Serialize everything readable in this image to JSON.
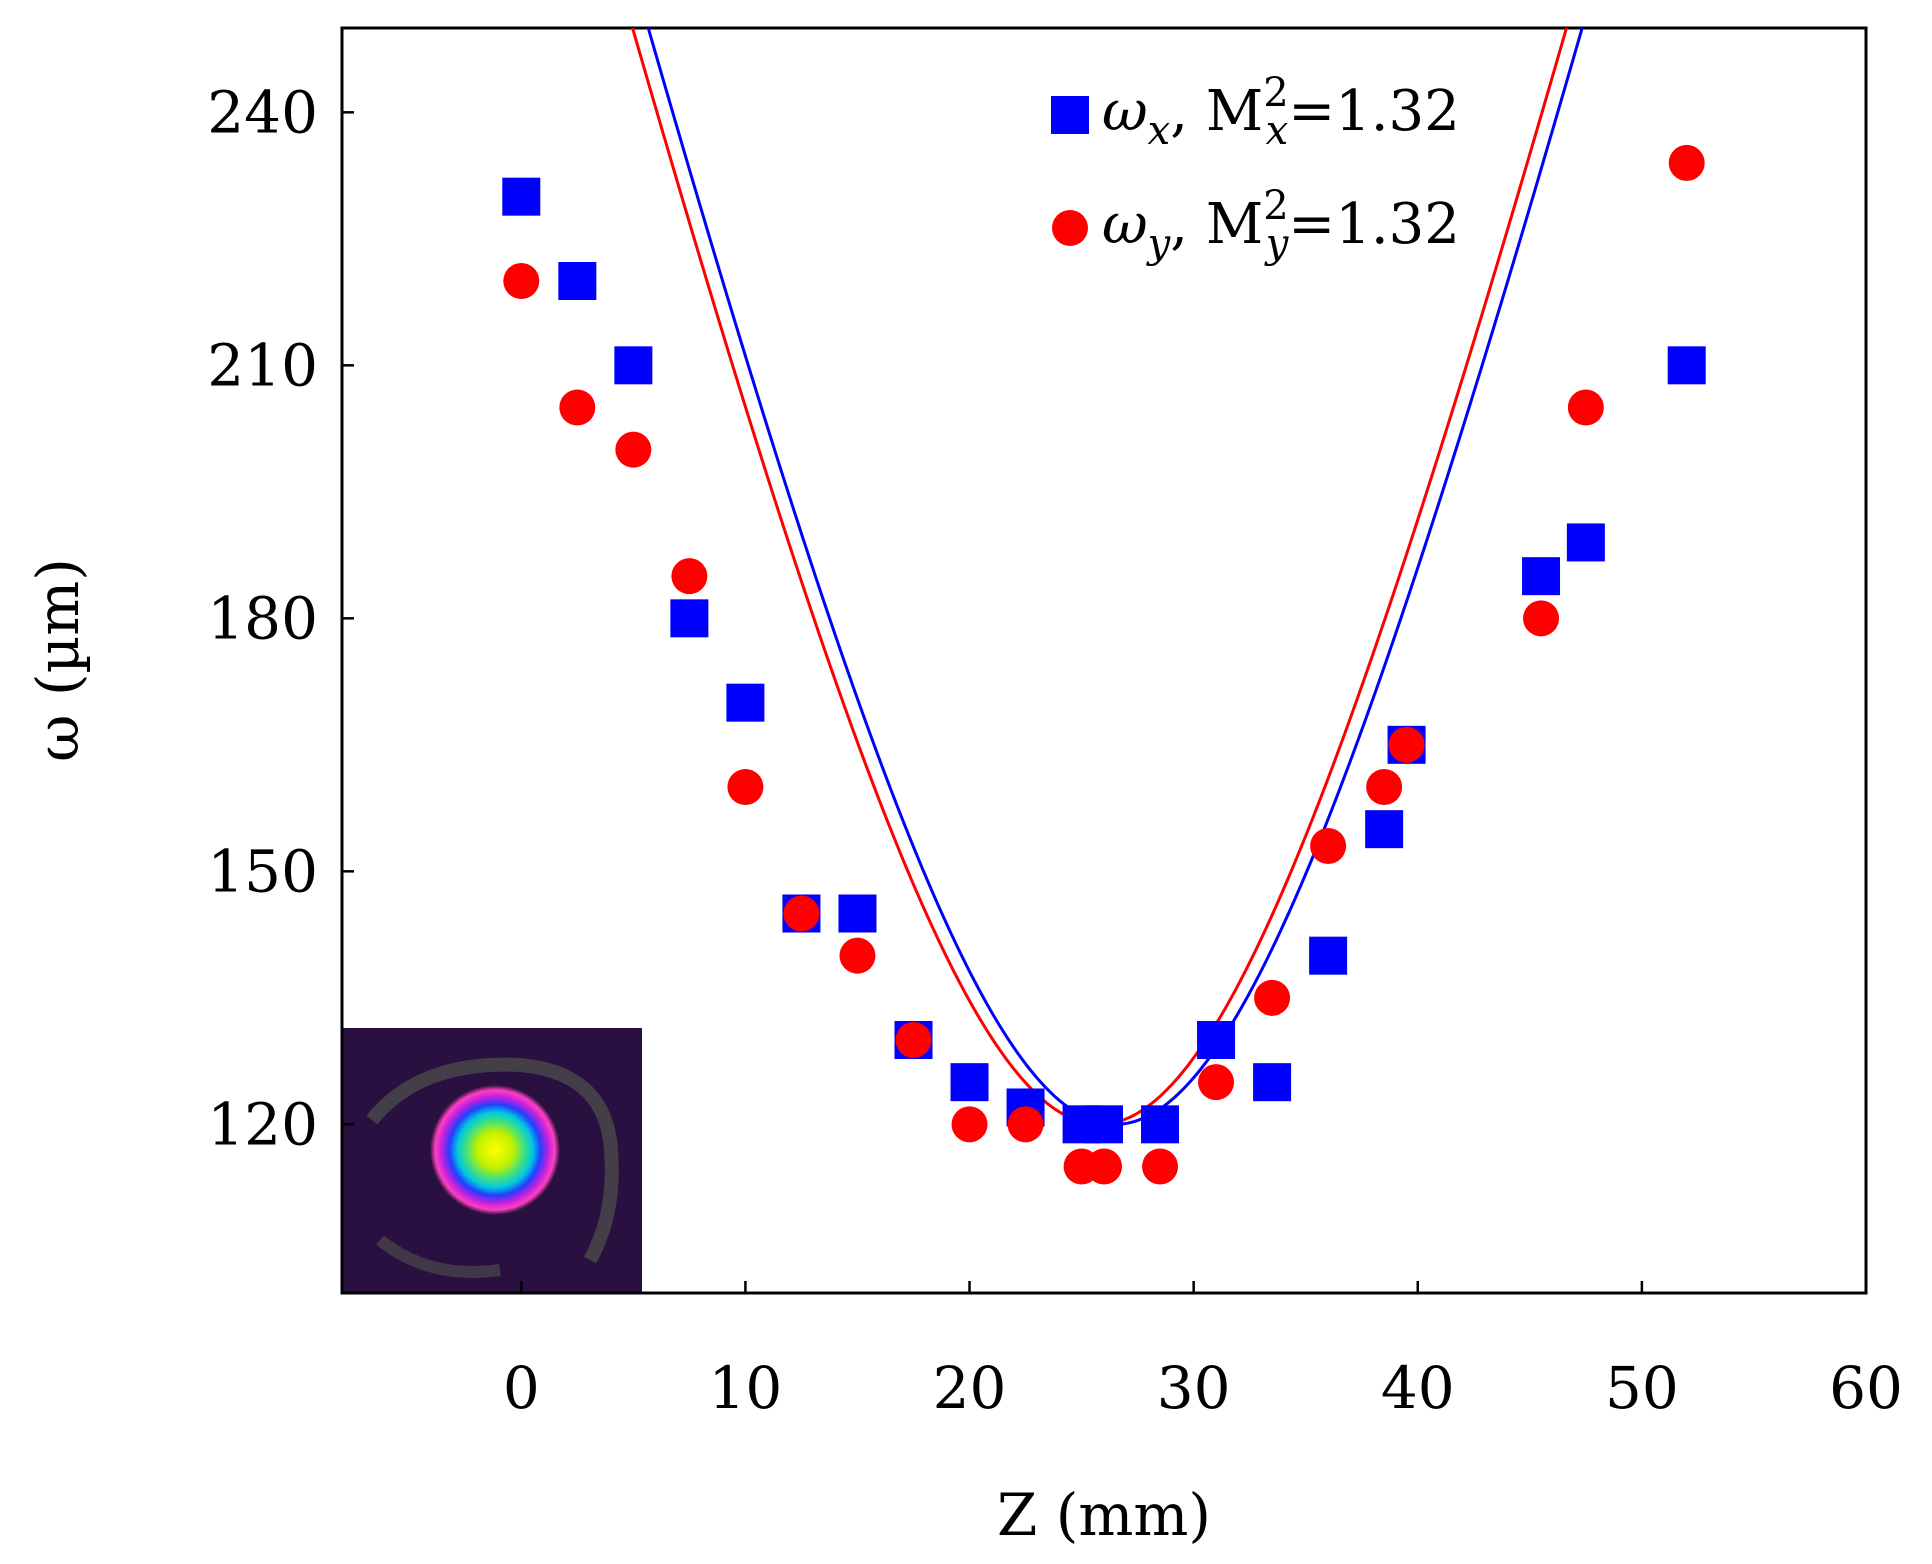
{
  "chart_data": {
    "type": "scatter",
    "xlabel": "Z (mm)",
    "ylabel": "ω (µm)",
    "xlim": [
      -8,
      60
    ],
    "ylim": [
      100,
      250
    ],
    "xticks": [
      0,
      10,
      20,
      30,
      40,
      50,
      60
    ],
    "yticks": [
      120,
      150,
      180,
      210,
      240
    ],
    "grid": false,
    "legend_position": "top-right",
    "inset": "beam-profile-image",
    "series": [
      {
        "name": "ωx",
        "legend": {
          "symbol": "ω",
          "subscript": "x",
          "m2_label": "M",
          "m2_sup": "2",
          "m2_sub": "x",
          "m2_value": "=1.32"
        },
        "color": "#0000ff",
        "marker": "square",
        "x": [
          0,
          2.5,
          5,
          7.5,
          10,
          12.5,
          15,
          17.5,
          20,
          22.5,
          25,
          26,
          28.5,
          31,
          33.5,
          36,
          38.5,
          39.5,
          45.5,
          47.5,
          52
        ],
        "y": [
          230,
          220,
          210,
          180,
          170,
          145,
          145,
          130,
          125,
          122,
          120,
          120,
          120,
          130,
          125,
          140,
          155,
          165,
          185,
          189,
          210
        ],
        "fit": {
          "w0": 120,
          "z0": 26.5,
          "zR": 11.4
        }
      },
      {
        "name": "ωy",
        "legend": {
          "symbol": "ω",
          "subscript": "y",
          "m2_label": "M",
          "m2_sup": "2",
          "m2_sub": "y",
          "m2_value": "=1.32"
        },
        "color": "#ff0000",
        "marker": "circle",
        "x": [
          0,
          2.5,
          5,
          7.5,
          10,
          12.5,
          15,
          17.5,
          20,
          22.5,
          25,
          26,
          28.5,
          31,
          33.5,
          36,
          38.5,
          39.5,
          45.5,
          47.5,
          52
        ],
        "y": [
          220,
          205,
          200,
          185,
          160,
          145,
          140,
          130,
          120,
          120,
          115,
          115,
          115,
          125,
          135,
          153,
          160,
          165,
          180,
          205,
          234
        ],
        "fit": {
          "w0": 120,
          "z0": 25.8,
          "zR": 11.4
        }
      }
    ]
  }
}
